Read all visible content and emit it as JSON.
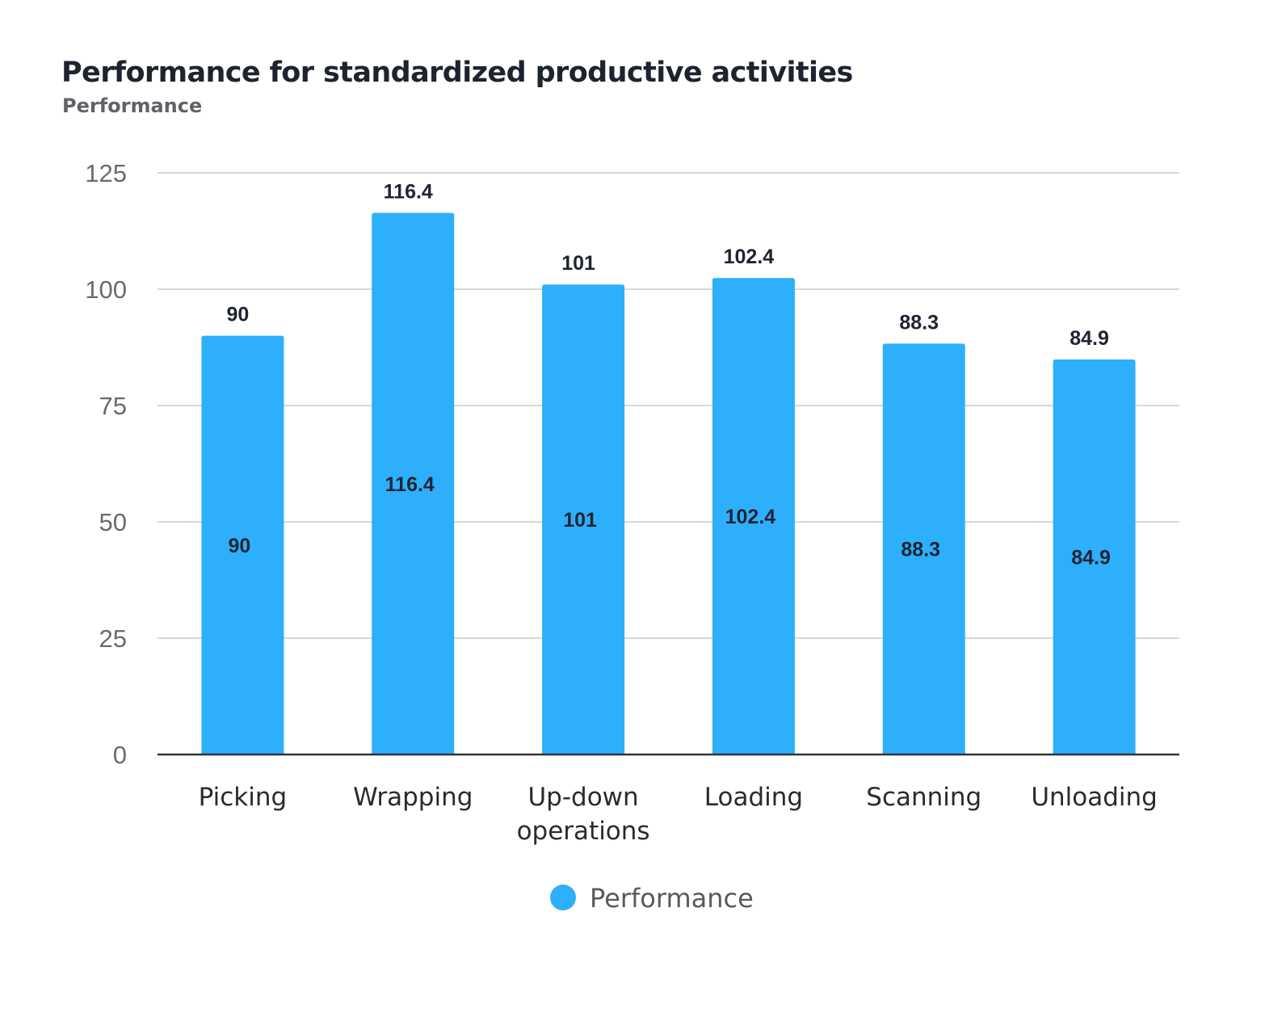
{
  "chart_data": {
    "type": "bar",
    "title": "Performance for standardized productive activities",
    "subtitle": "Performance",
    "categories": [
      [
        "Picking"
      ],
      [
        "Wrapping"
      ],
      [
        "Up-down",
        "operations"
      ],
      [
        "Loading"
      ],
      [
        "Scanning"
      ],
      [
        "Unloading"
      ]
    ],
    "series": [
      {
        "name": "Performance",
        "color": "#2eaffc",
        "values": [
          90,
          116.4,
          101,
          102.4,
          88.3,
          84.9
        ]
      }
    ],
    "yticks": [
      "0",
      "25",
      "50",
      "75",
      "100",
      "125"
    ],
    "ylim": [
      0,
      125
    ],
    "grid": true,
    "legend": "bottom",
    "data_labels": [
      "above",
      "inside"
    ]
  }
}
